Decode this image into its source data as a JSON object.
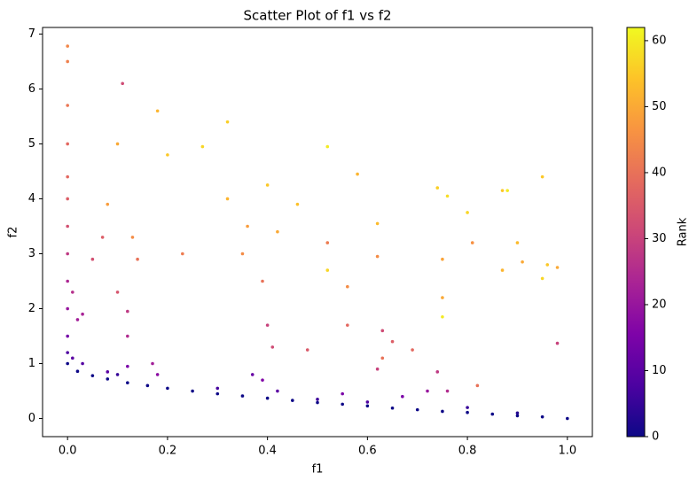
{
  "chart_data": {
    "type": "scatter",
    "title": "Scatter Plot of f1 vs f2",
    "x_label": "f1",
    "y_label": "f2",
    "colormap": "plasma",
    "xlim": [
      -0.05,
      1.05
    ],
    "xticks": [
      {
        "value": 0,
        "label": "0.0"
      },
      {
        "value": 0.2,
        "label": "0.2"
      },
      {
        "value": 0.4,
        "label": "0.4"
      },
      {
        "value": 0.6,
        "label": "0.6"
      },
      {
        "value": 0.8,
        "label": "0.8"
      },
      {
        "value": 1,
        "label": "1.0"
      }
    ],
    "ylim": [
      -0.33,
      7.12
    ],
    "yticks": [
      0,
      1,
      2,
      3,
      4,
      5,
      6,
      7
    ],
    "colorbar": {
      "label": "Rank",
      "lim": [
        0,
        62
      ],
      "ticks": [
        0,
        10,
        20,
        30,
        40,
        50,
        60
      ]
    },
    "series": [
      {
        "x": [
          0.0,
          0.0,
          0.0,
          0.0,
          0.0,
          0.0,
          0.0,
          0.0,
          0.0,
          0.0,
          0.01,
          0.02,
          0.03,
          0.05,
          0.07,
          0.08,
          0.1,
          0.11,
          0.1,
          0.13,
          0.14,
          0.12,
          0.12,
          0.18,
          0.2,
          0.23,
          0.27,
          0.32,
          0.32,
          0.35,
          0.36,
          0.39,
          0.4,
          0.4,
          0.41,
          0.42,
          0.46,
          0.48,
          0.52,
          0.52,
          0.52,
          0.56,
          0.56,
          0.58,
          0.62,
          0.62,
          0.63,
          0.65,
          0.69,
          0.74,
          0.75,
          0.75,
          0.76,
          0.75,
          0.8,
          0.81,
          0.82,
          0.87,
          0.88,
          0.87,
          0.9,
          0.91,
          0.95,
          0.95,
          0.96,
          0.98,
          0.98,
          0.0,
          0.0,
          0.01,
          0.03,
          0.08,
          0.12,
          0.17,
          0.18,
          0.37,
          0.39,
          0.42,
          0.55,
          0.62,
          0.63,
          0.67,
          0.72,
          0.74,
          0.76,
          0.6,
          0.8,
          0.9,
          0.5,
          0.3,
          0.1,
          0.0,
          0.02,
          0.05,
          0.08,
          0.12,
          0.16,
          0.2,
          0.25,
          0.3,
          0.35,
          0.4,
          0.45,
          0.5,
          0.55,
          0.6,
          0.65,
          0.7,
          0.75,
          0.8,
          0.85,
          0.9,
          0.95,
          1.0
        ],
        "y": [
          2.0,
          2.5,
          3.0,
          3.5,
          4.0,
          4.4,
          5.0,
          5.7,
          6.5,
          6.78,
          2.3,
          1.8,
          1.9,
          2.9,
          3.3,
          3.9,
          2.3,
          6.1,
          5.0,
          3.3,
          2.9,
          1.95,
          1.5,
          5.6,
          4.8,
          3.0,
          4.95,
          5.4,
          4.0,
          3.0,
          3.5,
          2.5,
          4.25,
          1.7,
          1.3,
          3.4,
          3.9,
          1.25,
          3.2,
          4.95,
          2.7,
          2.4,
          1.7,
          4.45,
          3.55,
          2.95,
          1.6,
          1.4,
          1.25,
          4.2,
          2.2,
          1.85,
          4.05,
          2.9,
          3.75,
          3.2,
          0.6,
          4.15,
          4.15,
          2.7,
          3.2,
          2.85,
          4.4,
          2.55,
          2.8,
          2.75,
          1.37,
          1.2,
          1.5,
          1.1,
          1.0,
          0.85,
          0.95,
          1.0,
          0.8,
          0.8,
          0.7,
          0.5,
          0.45,
          0.9,
          1.1,
          0.4,
          0.5,
          0.85,
          0.5,
          0.3,
          0.2,
          0.1,
          0.35,
          0.55,
          0.8,
          1.0,
          0.86,
          0.78,
          0.72,
          0.65,
          0.6,
          0.55,
          0.5,
          0.45,
          0.41,
          0.37,
          0.33,
          0.29,
          0.26,
          0.23,
          0.19,
          0.16,
          0.13,
          0.11,
          0.08,
          0.05,
          0.03,
          0.0
        ],
        "rank": [
          20,
          24,
          28,
          33,
          36,
          38,
          38,
          41,
          43,
          44,
          26,
          22,
          23,
          33,
          36,
          48,
          34,
          32,
          50,
          45,
          40,
          28,
          25,
          52,
          55,
          42,
          57,
          56,
          52,
          45,
          48,
          40,
          55,
          30,
          32,
          50,
          54,
          35,
          42,
          60,
          57,
          45,
          38,
          52,
          53,
          45,
          32,
          36,
          38,
          56,
          50,
          60,
          58,
          49,
          57,
          46,
          40,
          55,
          60,
          52,
          53,
          50,
          55,
          57,
          55,
          50,
          30,
          8,
          14,
          10,
          9,
          10,
          15,
          22,
          18,
          12,
          16,
          10,
          15,
          30,
          40,
          15,
          20,
          28,
          25,
          8,
          5,
          3,
          6,
          7,
          5,
          0,
          0,
          0,
          0,
          0,
          0,
          0,
          0,
          0,
          0,
          0,
          0,
          0,
          0,
          0,
          0,
          0,
          0,
          0,
          0,
          0,
          0,
          0
        ]
      }
    ]
  }
}
